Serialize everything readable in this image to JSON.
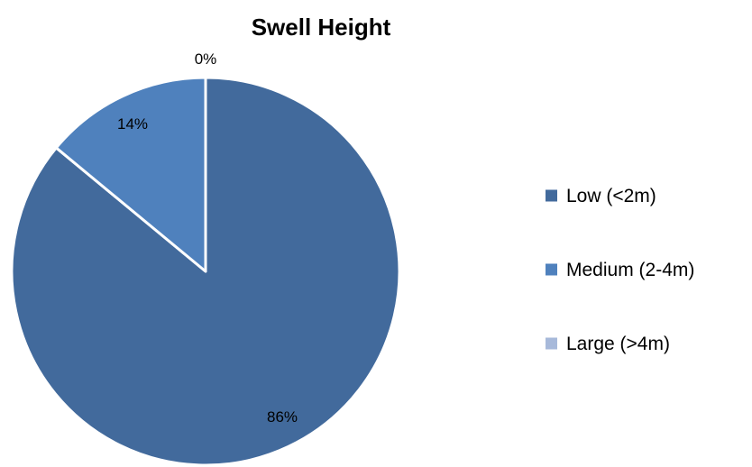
{
  "chart_data": {
    "type": "pie",
    "title": "Swell Height",
    "categories": [
      "Low (<2m)",
      "Medium (2-4m)",
      "Large (>4m)"
    ],
    "values": [
      86,
      14,
      0
    ],
    "data_labels": [
      "86%",
      "14%",
      "0%"
    ],
    "colors": [
      "#426A9C",
      "#4F81BD",
      "#A7B9DA"
    ],
    "legend": "right"
  }
}
